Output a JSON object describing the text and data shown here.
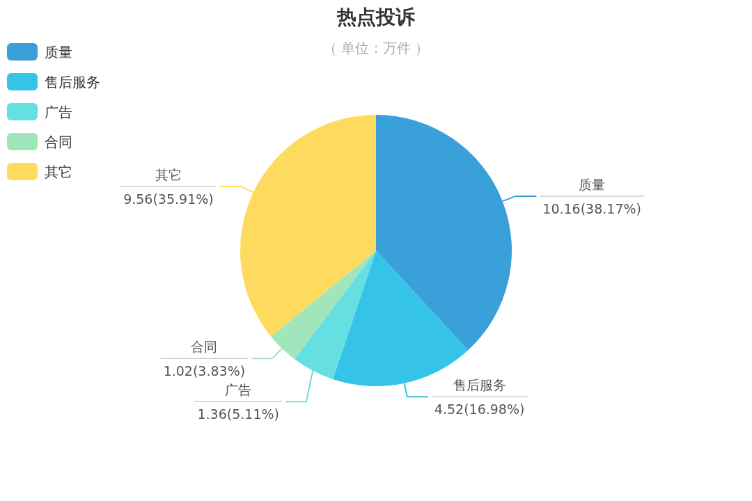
{
  "chart_data": {
    "type": "pie",
    "title": "热点投诉",
    "subtitle": "（ 单位：万件 ）",
    "categories": [
      "质量",
      "售后服务",
      "广告",
      "合同",
      "其它"
    ],
    "values": [
      10.16,
      4.52,
      1.36,
      1.02,
      9.56
    ],
    "colors": [
      "#3aa0da",
      "#35c4e8",
      "#66dfe2",
      "#a0e6ba",
      "#fedb5f"
    ],
    "value_labels": [
      "10.16(38.17%)",
      "4.52(16.98%)",
      "1.36(5.11%)",
      "1.02(3.83%)",
      "9.56(35.91%)"
    ],
    "legend": "top left"
  }
}
